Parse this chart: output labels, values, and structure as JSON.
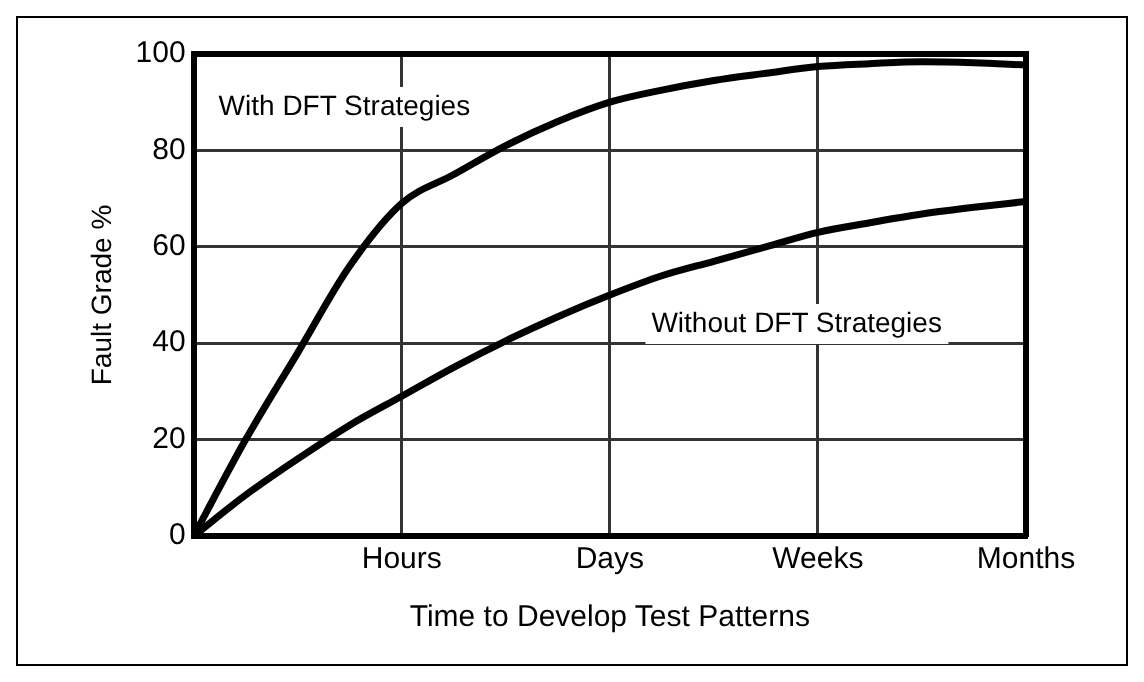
{
  "chart_data": {
    "type": "line",
    "xlabel": "Time to Develop Test Patterns",
    "ylabel": "Fault Grade %",
    "categories": [
      null,
      null,
      null,
      null,
      "Hours",
      null,
      null,
      null,
      "Days",
      null,
      null,
      null,
      "Weeks",
      null,
      null,
      null,
      "Months"
    ],
    "ylim": [
      0,
      100
    ],
    "yticks": [
      0,
      20,
      40,
      60,
      80,
      100
    ],
    "grid": true,
    "legend": false,
    "marker": "none",
    "line_style": "solid",
    "series": [
      {
        "name": "With DFT Strategies",
        "color": "#000000",
        "values": [
          0,
          20,
          38,
          56,
          69,
          75,
          81,
          86,
          90,
          92.5,
          94.5,
          96,
          97.4,
          98,
          98.4,
          98.2,
          97.7
        ]
      },
      {
        "name": "Without DFT Strategies",
        "color": "#000000",
        "values": [
          0,
          8.5,
          16,
          23,
          29,
          35,
          40.5,
          45.5,
          50,
          54,
          57,
          60,
          63,
          65,
          66.8,
          68.2,
          69.4
        ]
      }
    ]
  }
}
